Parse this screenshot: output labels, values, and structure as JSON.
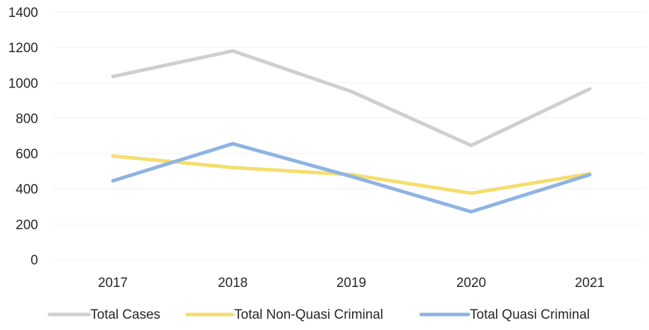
{
  "chart_data": {
    "type": "line",
    "title": "",
    "xlabel": "",
    "ylabel": "",
    "categories": [
      "2017",
      "2018",
      "2019",
      "2020",
      "2021"
    ],
    "ylim": [
      0,
      1400
    ],
    "yticks": [
      0,
      200,
      400,
      600,
      800,
      1000,
      1200,
      1400
    ],
    "grid": true,
    "legend_position": "bottom",
    "series": [
      {
        "name": "Total Cases",
        "color": "#cfcfcf",
        "values": [
          1035,
          1180,
          950,
          645,
          965
        ]
      },
      {
        "name": "Total Non-Quasi Criminal",
        "color": "#f5de6e",
        "values": [
          585,
          520,
          480,
          375,
          485
        ]
      },
      {
        "name": "Total Quasi Criminal",
        "color": "#8eb4e3",
        "values": [
          445,
          655,
          470,
          270,
          480
        ]
      }
    ]
  }
}
